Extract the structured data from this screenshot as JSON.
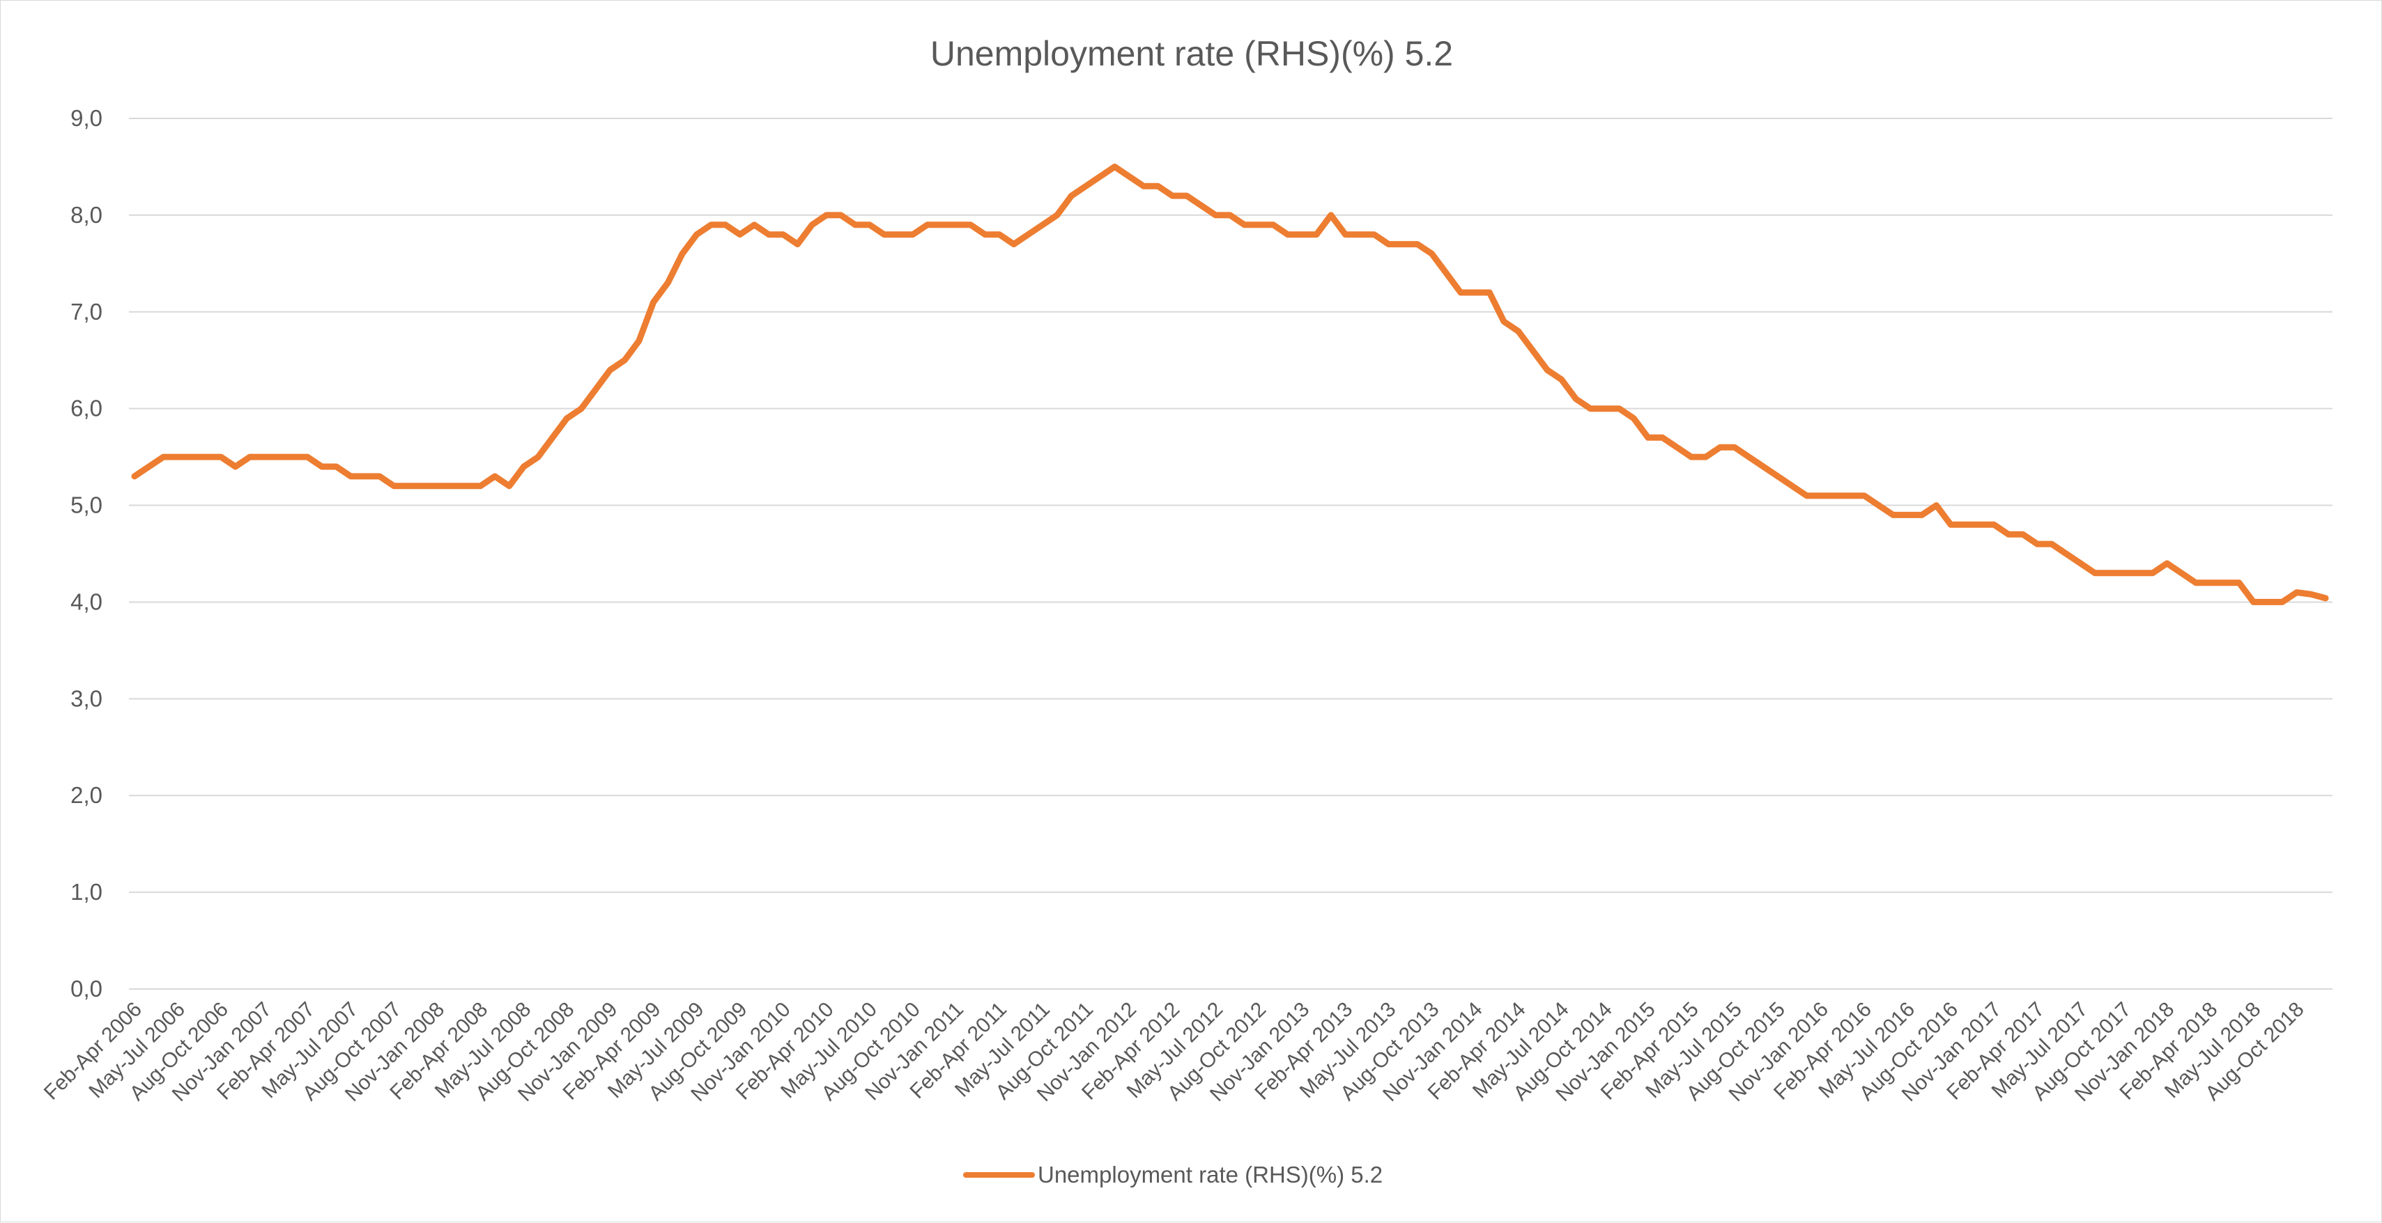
{
  "chart_data": {
    "type": "line",
    "title": "Unemployment rate (RHS)(%) 5.2",
    "xlabel": "",
    "ylabel": "",
    "ylim": [
      0,
      9
    ],
    "y_ticks": [
      "0,0",
      "1,0",
      "2,0",
      "3,0",
      "4,0",
      "5,0",
      "6,0",
      "7,0",
      "8,0",
      "9,0"
    ],
    "grid": true,
    "legend_position": "bottom",
    "series_color": "#ED7D31",
    "gridline_color": "#D9D9D9",
    "x_tick_labels": [
      "Feb-Apr 2006",
      "May-Jul 2006",
      "Aug-Oct 2006",
      "Nov-Jan 2007",
      "Feb-Apr 2007",
      "May-Jul 2007",
      "Aug-Oct 2007",
      "Nov-Jan 2008",
      "Feb-Apr 2008",
      "May-Jul 2008",
      "Aug-Oct 2008",
      "Nov-Jan 2009",
      "Feb-Apr 2009",
      "May-Jul 2009",
      "Aug-Oct 2009",
      "Nov-Jan 2010",
      "Feb-Apr 2010",
      "May-Jul 2010",
      "Aug-Oct 2010",
      "Nov-Jan 2011",
      "Feb-Apr 2011",
      "May-Jul 2011",
      "Aug-Oct 2011",
      "Nov-Jan 2012",
      "Feb-Apr 2012",
      "May-Jul 2012",
      "Aug-Oct 2012",
      "Nov-Jan 2013",
      "Feb-Apr 2013",
      "May-Jul 2013",
      "Aug-Oct 2013",
      "Nov-Jan 2014",
      "Feb-Apr 2014",
      "May-Jul 2014",
      "Aug-Oct 2014",
      "Nov-Jan 2015",
      "Feb-Apr 2015",
      "May-Jul 2015",
      "Aug-Oct 2015",
      "Nov-Jan 2016",
      "Feb-Apr 2016",
      "May-Jul 2016",
      "Aug-Oct 2016",
      "Nov-Jan 2017",
      "Feb-Apr 2017",
      "May-Jul 2017",
      "Aug-Oct 2017",
      "Nov-Jan 2018",
      "Feb-Apr 2018",
      "May-Jul 2018",
      "Aug-Oct 2018"
    ],
    "series": [
      {
        "name": "Unemployment rate (RHS)(%) 5.2",
        "values": [
          5.3,
          5.4,
          5.5,
          5.5,
          5.5,
          5.5,
          5.5,
          5.4,
          5.5,
          5.5,
          5.5,
          5.5,
          5.5,
          5.4,
          5.4,
          5.3,
          5.3,
          5.3,
          5.2,
          5.2,
          5.2,
          5.2,
          5.2,
          5.2,
          5.2,
          5.3,
          5.2,
          5.4,
          5.5,
          5.7,
          5.9,
          6.0,
          6.2,
          6.4,
          6.5,
          6.7,
          7.1,
          7.3,
          7.6,
          7.8,
          7.9,
          7.9,
          7.8,
          7.9,
          7.8,
          7.8,
          7.7,
          7.9,
          8.0,
          8.0,
          7.9,
          7.9,
          7.8,
          7.8,
          7.8,
          7.9,
          7.9,
          7.9,
          7.9,
          7.8,
          7.8,
          7.7,
          7.8,
          7.9,
          8.0,
          8.2,
          8.3,
          8.4,
          8.5,
          8.4,
          8.3,
          8.3,
          8.2,
          8.2,
          8.1,
          8.0,
          8.0,
          7.9,
          7.9,
          7.9,
          7.8,
          7.8,
          7.8,
          8.0,
          7.8,
          7.8,
          7.8,
          7.7,
          7.7,
          7.7,
          7.6,
          7.4,
          7.2,
          7.2,
          7.2,
          6.9,
          6.8,
          6.6,
          6.4,
          6.3,
          6.1,
          6.0,
          6.0,
          6.0,
          5.9,
          5.7,
          5.7,
          5.6,
          5.5,
          5.5,
          5.6,
          5.6,
          5.5,
          5.4,
          5.3,
          5.2,
          5.1,
          5.1,
          5.1,
          5.1,
          5.1,
          5.0,
          4.9,
          4.9,
          4.9,
          5.0,
          4.8,
          4.8,
          4.8,
          4.8,
          4.7,
          4.7,
          4.6,
          4.6,
          4.5,
          4.4,
          4.3,
          4.3,
          4.3,
          4.3,
          4.3,
          4.4,
          4.3,
          4.2,
          4.2,
          4.2,
          4.2,
          4.0,
          4.0,
          4.0,
          4.1,
          4.08,
          4.04
        ]
      }
    ]
  }
}
